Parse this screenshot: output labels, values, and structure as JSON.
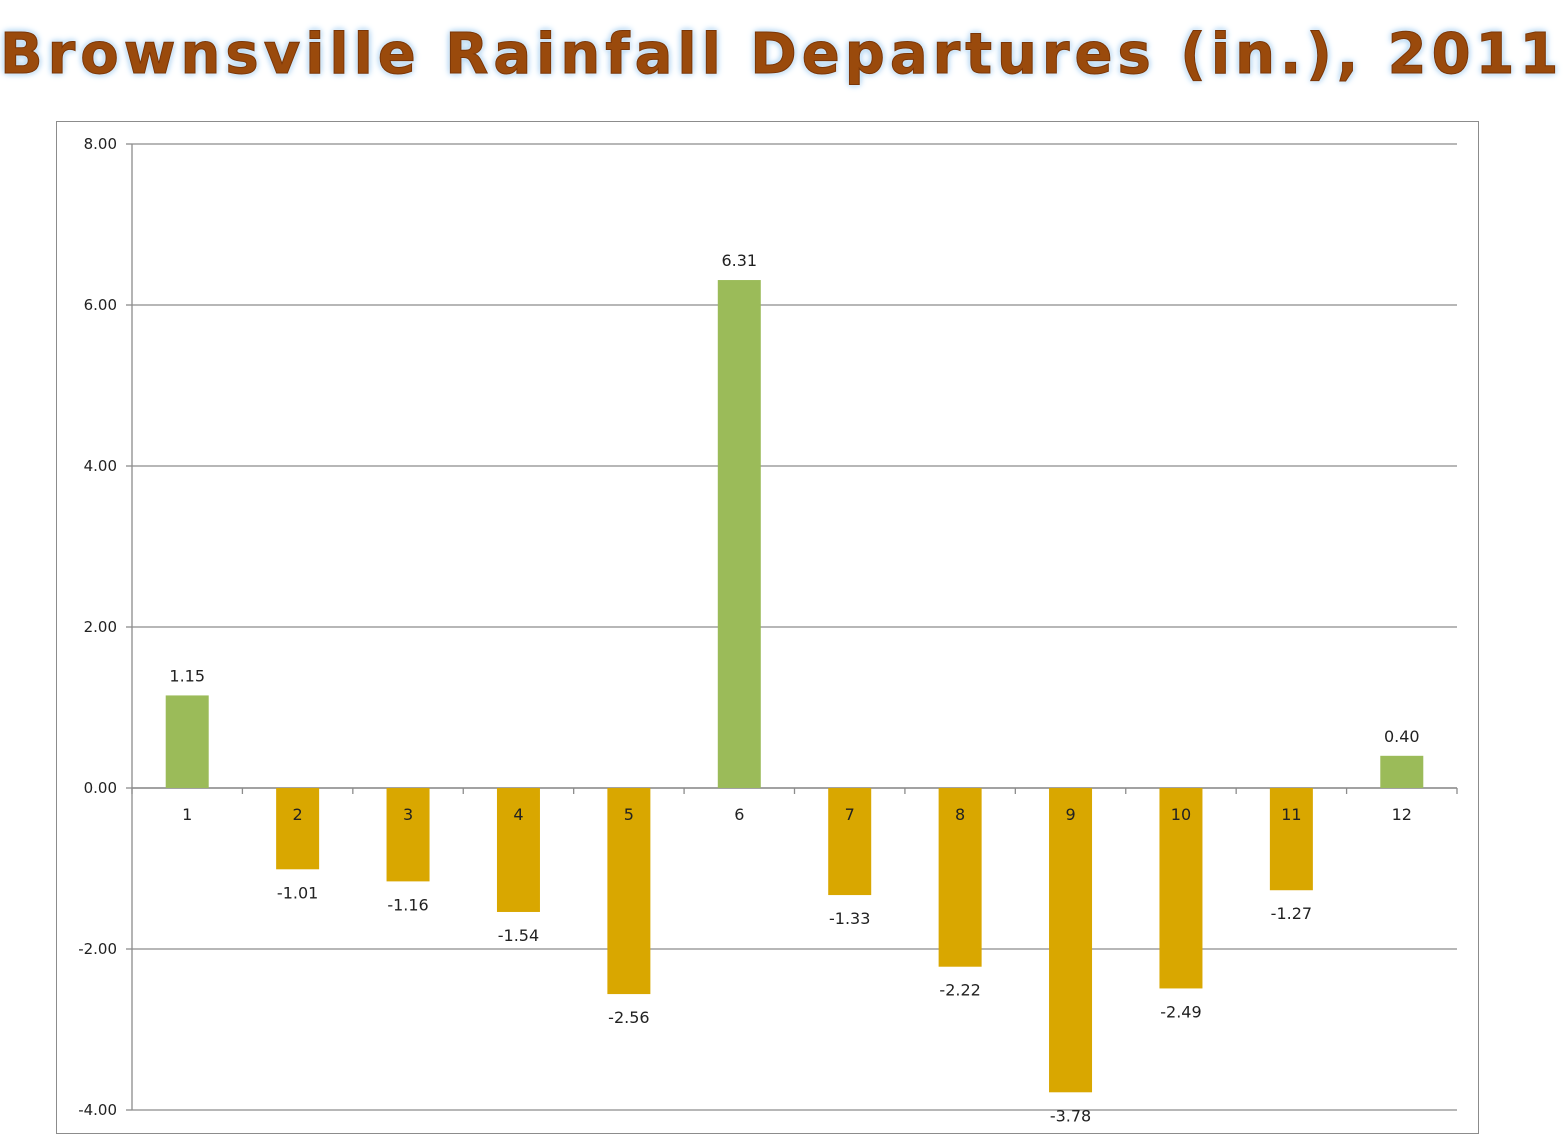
{
  "title": "Brownsville Rainfall Departures (in.), 2011",
  "colors": {
    "positive": "#9bbb59",
    "negative": "#d9a700",
    "gridline": "#8c8c8c",
    "title": "#9a4a0c"
  },
  "chart_data": {
    "type": "bar",
    "title": "Brownsville Rainfall Departures (in.), 2011",
    "xlabel": "",
    "ylabel": "",
    "categories": [
      "1",
      "2",
      "3",
      "4",
      "5",
      "6",
      "7",
      "8",
      "9",
      "10",
      "11",
      "12"
    ],
    "values": [
      1.15,
      -1.01,
      -1.16,
      -1.54,
      -2.56,
      6.31,
      -1.33,
      -2.22,
      -3.78,
      -2.49,
      -1.27,
      0.4
    ],
    "data_labels": [
      "1.15",
      "-1.01",
      "-1.16",
      "-1.54",
      "-2.56",
      "6.31",
      "-1.33",
      "-2.22",
      "-3.78",
      "-2.49",
      "-1.27",
      "0.40"
    ],
    "ylim": [
      -4,
      8
    ],
    "yticks": [
      8,
      6,
      4,
      2,
      0,
      -2,
      -4
    ],
    "ytick_labels": [
      "8.00",
      "6.00",
      "4.00",
      "2.00",
      "0.00",
      "-2.00",
      "-4.00"
    ],
    "grid": true,
    "legend": "none"
  }
}
